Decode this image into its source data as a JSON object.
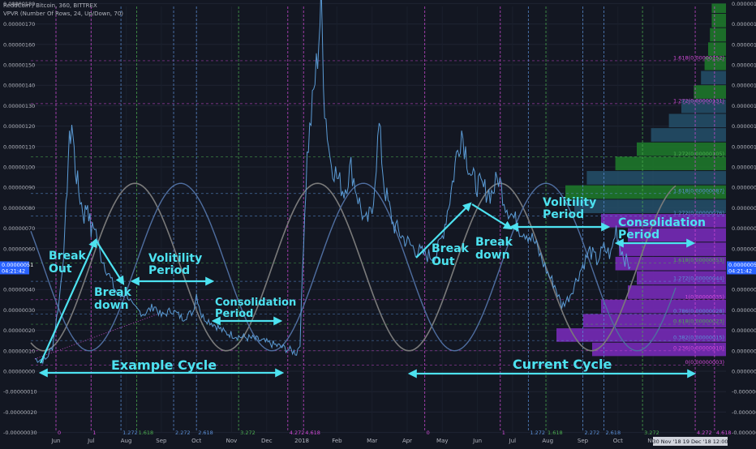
{
  "header": {
    "symbol_line": "ReddCoin / Bitcoin, 360, BITTREX",
    "indicator_line": "VPVR (Number Of Rows, 24, Up/Down, 70)"
  },
  "colors": {
    "background": "#131722",
    "price": "#5b9bd5",
    "cycle_sine_1": "#7a7a7a",
    "cycle_sine_2": "#4f6ea0",
    "annotation": "#4de2f0",
    "fib_time_magenta": "#d34bd9",
    "fib_time_green": "#4caf50",
    "fib_time_blue": "#5b8fd6",
    "vp_green": "#1e7d2a",
    "vp_purple": "#7d2bbf",
    "vp_teal": "#24506a"
  },
  "chart_data": {
    "type": "line",
    "y_range": [
      -3e-07,
      1.8e-06
    ],
    "y_ticks": [
      {
        "v": 1.8e-06,
        "label": "0.00000180"
      },
      {
        "v": 1.7e-06,
        "label": "0.00000170"
      },
      {
        "v": 1.6e-06,
        "label": "0.00000160"
      },
      {
        "v": 1.5e-06,
        "label": "0.00000150"
      },
      {
        "v": 1.4e-06,
        "label": "0.00000140"
      },
      {
        "v": 1.3e-06,
        "label": "0.00000130"
      },
      {
        "v": 1.2e-06,
        "label": "0.00000120"
      },
      {
        "v": 1.1e-06,
        "label": "0.00000110"
      },
      {
        "v": 1e-06,
        "label": "0.00000100"
      },
      {
        "v": 9e-07,
        "label": "0.00000090"
      },
      {
        "v": 8e-07,
        "label": "0.00000080"
      },
      {
        "v": 7e-07,
        "label": "0.00000070"
      },
      {
        "v": 6e-07,
        "label": "0.00000060"
      },
      {
        "v": 4e-07,
        "label": "0.00000040"
      },
      {
        "v": 3e-07,
        "label": "0.00000030"
      },
      {
        "v": 2e-07,
        "label": "0.00000020"
      },
      {
        "v": 1e-07,
        "label": "0.00000010"
      },
      {
        "v": 0,
        "label": "0.00000000"
      },
      {
        "v": -1e-07,
        "label": "-0.00000010"
      },
      {
        "v": -2e-07,
        "label": "-0.00000020"
      },
      {
        "v": -3e-07,
        "label": "-0.00000030"
      }
    ],
    "x_ticks": [
      "Jun",
      "Jul",
      "Aug",
      "Sep",
      "Oct",
      "Nov",
      "Dec",
      "2018",
      "Feb",
      "Mar",
      "Apr",
      "May",
      "Jun",
      "Jul",
      "Aug",
      "Sep",
      "Oct",
      "Nov"
    ],
    "x_tick_months": [
      0,
      1,
      2,
      3,
      4,
      5,
      6,
      7,
      8,
      9,
      10,
      11,
      12,
      13,
      14,
      15,
      16,
      17
    ],
    "x_start_month": -0.6,
    "x_end_month": 18.8,
    "x_scale_note": "months since June 2017",
    "price_series": [
      {
        "x": -0.6,
        "y": 6e-08
      },
      {
        "x": -0.3,
        "y": 5.5e-08
      },
      {
        "x": -0.1,
        "y": 1.2e-07
      },
      {
        "x": 0.1,
        "y": 3.6e-07
      },
      {
        "x": 0.25,
        "y": 6.5e-07
      },
      {
        "x": 0.35,
        "y": 1.05e-06
      },
      {
        "x": 0.45,
        "y": 1.22e-06
      },
      {
        "x": 0.55,
        "y": 1e-06
      },
      {
        "x": 0.65,
        "y": 8.8e-07
      },
      {
        "x": 0.8,
        "y": 7.6e-07
      },
      {
        "x": 0.9,
        "y": 8.3e-07
      },
      {
        "x": 1.0,
        "y": 6.8e-07
      },
      {
        "x": 1.1,
        "y": 7.2e-07
      },
      {
        "x": 1.25,
        "y": 5.8e-07
      },
      {
        "x": 1.4,
        "y": 5.2e-07
      },
      {
        "x": 1.6,
        "y": 4.3e-07
      },
      {
        "x": 1.8,
        "y": 3.6e-07
      },
      {
        "x": 2.0,
        "y": 3.9e-07
      },
      {
        "x": 2.2,
        "y": 3.1e-07
      },
      {
        "x": 2.5,
        "y": 2.8e-07
      },
      {
        "x": 2.8,
        "y": 3.2e-07
      },
      {
        "x": 3.0,
        "y": 2.7e-07
      },
      {
        "x": 3.3,
        "y": 3e-07
      },
      {
        "x": 3.6,
        "y": 2.6e-07
      },
      {
        "x": 3.9,
        "y": 2.9e-07
      },
      {
        "x": 4.0,
        "y": 3.8e-07
      },
      {
        "x": 4.15,
        "y": 2.7e-07
      },
      {
        "x": 4.5,
        "y": 2.3e-07
      },
      {
        "x": 4.8,
        "y": 1.9e-07
      },
      {
        "x": 5.2,
        "y": 1.7e-07
      },
      {
        "x": 5.6,
        "y": 1.6e-07
      },
      {
        "x": 6.0,
        "y": 1.4e-07
      },
      {
        "x": 6.4,
        "y": 1.2e-07
      },
      {
        "x": 6.7,
        "y": 1e-07
      },
      {
        "x": 6.85,
        "y": 9e-08
      },
      {
        "x": 6.95,
        "y": 1.4e-07
      },
      {
        "x": 7.05,
        "y": 6.5e-07
      },
      {
        "x": 7.15,
        "y": 1.05e-06
      },
      {
        "x": 7.3,
        "y": 1.3e-06
      },
      {
        "x": 7.45,
        "y": 1.55e-06
      },
      {
        "x": 7.55,
        "y": 1.8e-06
      },
      {
        "x": 7.65,
        "y": 1.3e-06
      },
      {
        "x": 7.8,
        "y": 1.05e-06
      },
      {
        "x": 8.0,
        "y": 9.5e-07
      },
      {
        "x": 8.2,
        "y": 8.8e-07
      },
      {
        "x": 8.4,
        "y": 1e-06
      },
      {
        "x": 8.6,
        "y": 8.5e-07
      },
      {
        "x": 8.8,
        "y": 7.2e-07
      },
      {
        "x": 9.0,
        "y": 7.8e-07
      },
      {
        "x": 9.2,
        "y": 1.2e-06
      },
      {
        "x": 9.35,
        "y": 9e-07
      },
      {
        "x": 9.6,
        "y": 7.2e-07
      },
      {
        "x": 9.9,
        "y": 6.5e-07
      },
      {
        "x": 10.2,
        "y": 6e-07
      },
      {
        "x": 10.5,
        "y": 5.7e-07
      },
      {
        "x": 10.8,
        "y": 5.6e-07
      },
      {
        "x": 11.0,
        "y": 6.6e-07
      },
      {
        "x": 11.25,
        "y": 8.8e-07
      },
      {
        "x": 11.4,
        "y": 1.05e-06
      },
      {
        "x": 11.55,
        "y": 1.18e-06
      },
      {
        "x": 11.7,
        "y": 1.05e-06
      },
      {
        "x": 11.85,
        "y": 9.4e-07
      },
      {
        "x": 12.1,
        "y": 9e-07
      },
      {
        "x": 12.4,
        "y": 8.7e-07
      },
      {
        "x": 12.6,
        "y": 9.5e-07
      },
      {
        "x": 12.8,
        "y": 8.2e-07
      },
      {
        "x": 13.0,
        "y": 7.6e-07
      },
      {
        "x": 13.2,
        "y": 7e-07
      },
      {
        "x": 13.4,
        "y": 6.8e-07
      },
      {
        "x": 13.6,
        "y": 6.4e-07
      },
      {
        "x": 13.8,
        "y": 5.6e-07
      },
      {
        "x": 14.0,
        "y": 4.8e-07
      },
      {
        "x": 14.2,
        "y": 4.2e-07
      },
      {
        "x": 14.4,
        "y": 3.2e-07
      },
      {
        "x": 14.6,
        "y": 3.6e-07
      },
      {
        "x": 14.8,
        "y": 4.4e-07
      },
      {
        "x": 15.0,
        "y": 5.2e-07
      },
      {
        "x": 15.2,
        "y": 5.9e-07
      },
      {
        "x": 15.4,
        "y": 5.4e-07
      },
      {
        "x": 15.6,
        "y": 6e-07
      },
      {
        "x": 15.8,
        "y": 5.7e-07
      },
      {
        "x": 15.95,
        "y": 7e-07
      },
      {
        "x": 16.05,
        "y": 6.2e-07
      },
      {
        "x": 16.2,
        "y": 5.5e-07
      },
      {
        "x": 16.35,
        "y": 5.1e-07
      }
    ],
    "current_price": {
      "label": "0.00000051",
      "timer": "04:21:42",
      "v": 5.1e-07
    },
    "fib_time_labels": [
      {
        "x": 0.0,
        "label": "0",
        "color": "#d34bd9"
      },
      {
        "x": 1.0,
        "label": "1",
        "color": "#d34bd9"
      },
      {
        "x": 1.85,
        "label": "1.272",
        "color": "#5b8fd6"
      },
      {
        "x": 2.3,
        "label": "1.618",
        "color": "#4caf50"
      },
      {
        "x": 3.35,
        "label": "2.272",
        "color": "#5b8fd6"
      },
      {
        "x": 4.0,
        "label": "2.618",
        "color": "#5b8fd6"
      },
      {
        "x": 5.2,
        "label": "3.272",
        "color": "#4caf50"
      },
      {
        "x": 6.6,
        "label": "4.272",
        "color": "#d34bd9"
      },
      {
        "x": 7.05,
        "label": "4.618",
        "color": "#d34bd9"
      },
      {
        "x": 10.5,
        "label": "0",
        "color": "#d34bd9"
      },
      {
        "x": 12.65,
        "label": "1",
        "color": "#d34bd9"
      },
      {
        "x": 13.45,
        "label": "1.272",
        "color": "#5b8fd6"
      },
      {
        "x": 13.95,
        "label": "1.618",
        "color": "#4caf50"
      },
      {
        "x": 15.0,
        "label": "2.272",
        "color": "#5b8fd6"
      },
      {
        "x": 15.6,
        "label": "2.618",
        "color": "#5b8fd6"
      },
      {
        "x": 16.7,
        "label": "3.272",
        "color": "#4caf50"
      },
      {
        "x": 18.2,
        "label": "4.272",
        "color": "#d34bd9"
      },
      {
        "x": 18.75,
        "label": "4.618",
        "color": "#d34bd9"
      }
    ],
    "bottom_date_labels": [
      "30 Nov '18",
      "19 Dec '18",
      "12:00"
    ],
    "fib_price_levels": [
      {
        "v": 1.52e-06,
        "label": "1.618(0.00000152)",
        "color": "#d34bd9"
      },
      {
        "v": 1.31e-06,
        "label": "1.272(0.00000131)",
        "color": "#d34bd9"
      },
      {
        "v": 1.05e-06,
        "label": "1.272(0.00000105)",
        "color": "#4caf50"
      },
      {
        "v": 8.7e-07,
        "label": "1.618(0.00000087)",
        "color": "#5b8fd6"
      },
      {
        "v": 7.6e-07,
        "label": "1.272(0.00000076)",
        "color": "#5b8fd6"
      },
      {
        "v": 5.3e-07,
        "label": "1.618(0.00000053)",
        "color": "#4caf50"
      },
      {
        "v": 4.4e-07,
        "label": "1.272(0.00000044)",
        "color": "#5b8fd6"
      },
      {
        "v": 3.5e-07,
        "label": "1(0.00000035)",
        "color": "#d34bd9"
      },
      {
        "v": 2.8e-07,
        "label": "0.786(0.00000028)",
        "color": "#5b8fd6"
      },
      {
        "v": 2.3e-07,
        "label": "0.618(0.00000023)",
        "color": "#4caf50"
      },
      {
        "v": 1.5e-07,
        "label": "0.382(0.00000015)",
        "color": "#5b8fd6"
      },
      {
        "v": 1e-07,
        "label": "0.236(0.00000010)",
        "color": "#d34bd9"
      },
      {
        "v": 3e-08,
        "label": "0(0.00000003)",
        "color": "#d34bd9"
      }
    ],
    "volume_profile": [
      {
        "lo": 1.75e-06,
        "hi": 1.8e-06,
        "len": 0.08,
        "color": "#1e7d2a"
      },
      {
        "lo": 1.68e-06,
        "hi": 1.75e-06,
        "len": 0.08,
        "color": "#1e7d2a"
      },
      {
        "lo": 1.61e-06,
        "hi": 1.68e-06,
        "len": 0.09,
        "color": "#1e7d2a"
      },
      {
        "lo": 1.54e-06,
        "hi": 1.61e-06,
        "len": 0.1,
        "color": "#1e7d2a"
      },
      {
        "lo": 1.47e-06,
        "hi": 1.54e-06,
        "len": 0.12,
        "color": "#1e7d2a"
      },
      {
        "lo": 1.4e-06,
        "hi": 1.47e-06,
        "len": 0.14,
        "color": "#24506a"
      },
      {
        "lo": 1.33e-06,
        "hi": 1.4e-06,
        "len": 0.18,
        "color": "#1e7d2a"
      },
      {
        "lo": 1.26e-06,
        "hi": 1.33e-06,
        "len": 0.25,
        "color": "#24506a"
      },
      {
        "lo": 1.19e-06,
        "hi": 1.26e-06,
        "len": 0.32,
        "color": "#24506a"
      },
      {
        "lo": 1.12e-06,
        "hi": 1.19e-06,
        "len": 0.42,
        "color": "#24506a"
      },
      {
        "lo": 1.05e-06,
        "hi": 1.12e-06,
        "len": 0.5,
        "color": "#1e7d2a"
      },
      {
        "lo": 9.8e-07,
        "hi": 1.05e-06,
        "len": 0.62,
        "color": "#1e7d2a"
      },
      {
        "lo": 9.1e-07,
        "hi": 9.8e-07,
        "len": 0.78,
        "color": "#24506a"
      },
      {
        "lo": 8.4e-07,
        "hi": 9.1e-07,
        "len": 0.9,
        "color": "#1e7d2a"
      },
      {
        "lo": 7.7e-07,
        "hi": 8.4e-07,
        "len": 0.85,
        "color": "#24506a"
      },
      {
        "lo": 7e-07,
        "hi": 7.7e-07,
        "len": 0.7,
        "color": "#7d2bbf"
      },
      {
        "lo": 6.3e-07,
        "hi": 7e-07,
        "len": 0.55,
        "color": "#7d2bbf"
      },
      {
        "lo": 5.6e-07,
        "hi": 6.3e-07,
        "len": 0.6,
        "color": "#7d2bbf"
      },
      {
        "lo": 4.9e-07,
        "hi": 5.6e-07,
        "len": 0.62,
        "color": "#7d2bbf"
      },
      {
        "lo": 4.2e-07,
        "hi": 4.9e-07,
        "len": 0.5,
        "color": "#7d2bbf"
      },
      {
        "lo": 3.5e-07,
        "hi": 4.2e-07,
        "len": 0.55,
        "color": "#7d2bbf"
      },
      {
        "lo": 2.8e-07,
        "hi": 3.5e-07,
        "len": 0.7,
        "color": "#7d2bbf"
      },
      {
        "lo": 2.1e-07,
        "hi": 2.8e-07,
        "len": 0.8,
        "color": "#7d2bbf"
      },
      {
        "lo": 1.4e-07,
        "hi": 2.1e-07,
        "len": 0.95,
        "color": "#7d2bbf"
      },
      {
        "lo": 7e-08,
        "hi": 1.4e-07,
        "len": 0.75,
        "color": "#7d2bbf"
      }
    ]
  },
  "annotations": [
    {
      "id": "break-out-1",
      "lines": [
        "Break",
        "Out"
      ]
    },
    {
      "id": "break-down-1",
      "lines": [
        "Break",
        "down"
      ]
    },
    {
      "id": "volatility-1",
      "lines": [
        "Volitility",
        "Period"
      ]
    },
    {
      "id": "consolidation-1",
      "lines": [
        "Consolidation",
        "Period"
      ]
    },
    {
      "id": "example-cycle",
      "lines": [
        "Example Cycle"
      ]
    },
    {
      "id": "break-out-2",
      "lines": [
        "Break",
        "Out"
      ]
    },
    {
      "id": "break-down-2",
      "lines": [
        "Break",
        "down"
      ]
    },
    {
      "id": "volatility-2",
      "lines": [
        "Volitility",
        "Period"
      ]
    },
    {
      "id": "consolidation-2",
      "lines": [
        "Consolidation",
        "Period"
      ]
    },
    {
      "id": "current-cycle",
      "lines": [
        "Current Cycle"
      ]
    }
  ]
}
